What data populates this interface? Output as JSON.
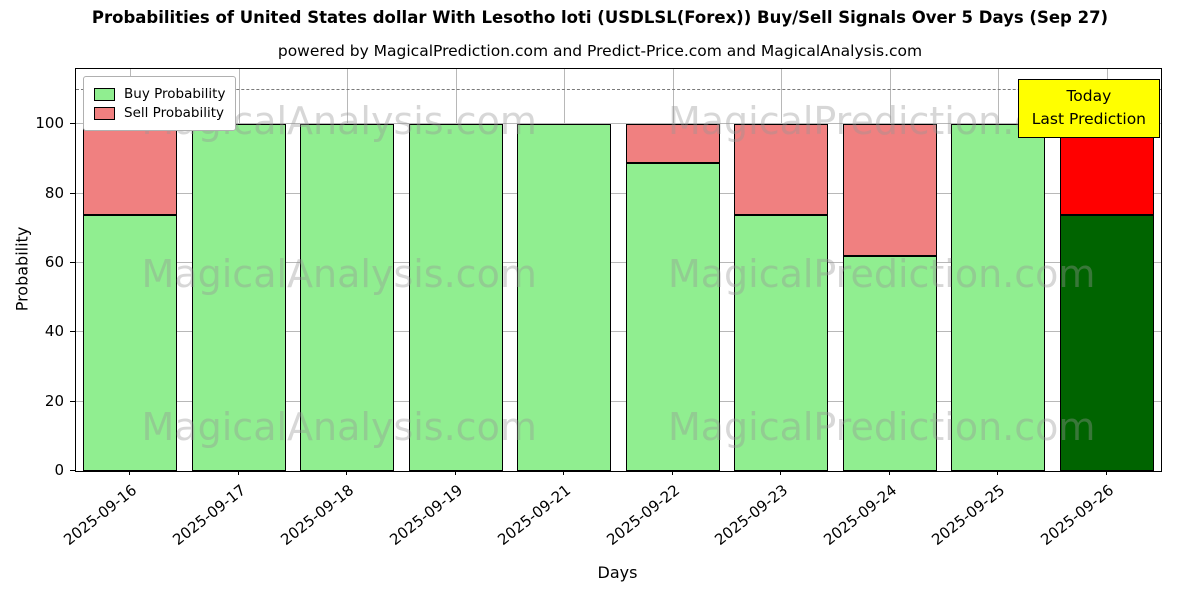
{
  "chart_data": {
    "type": "bar",
    "stacked": true,
    "title": "Probabilities of United States dollar With Lesotho loti (USDLSL(Forex)) Buy/Sell Signals Over 5 Days (Sep 27)",
    "subtitle": "powered by MagicalPrediction.com and Predict-Price.com and MagicalAnalysis.com",
    "xlabel": "Days",
    "ylabel": "Probability",
    "ylim": [
      0,
      116
    ],
    "yticks": [
      0,
      20,
      40,
      60,
      80,
      100
    ],
    "dashed_line_y": 110,
    "grid": true,
    "legend_position": "upper-left",
    "categories": [
      "2025-09-16",
      "2025-09-17",
      "2025-09-18",
      "2025-09-19",
      "2025-09-21",
      "2025-09-22",
      "2025-09-23",
      "2025-09-24",
      "2025-09-25",
      "2025-09-26"
    ],
    "series": [
      {
        "name": "Buy Probability",
        "color": "#90EE90",
        "values": [
          74,
          100,
          100,
          100,
          100,
          89,
          74,
          62,
          100,
          74
        ]
      },
      {
        "name": "Sell Probability",
        "color": "#F08080",
        "values": [
          26,
          0,
          0,
          0,
          0,
          11,
          26,
          38,
          0,
          26
        ]
      }
    ],
    "today_index": 9,
    "today_colors": {
      "buy": "#006400",
      "sell": "#FF0000"
    },
    "bar_edge_color": "#000000",
    "annotation": {
      "line1": "Today",
      "line2": "Last Prediction",
      "bg": "#FFFF00"
    },
    "watermarks": [
      "MagicalAnalysis.com",
      "MagicalPrediction.com"
    ]
  }
}
